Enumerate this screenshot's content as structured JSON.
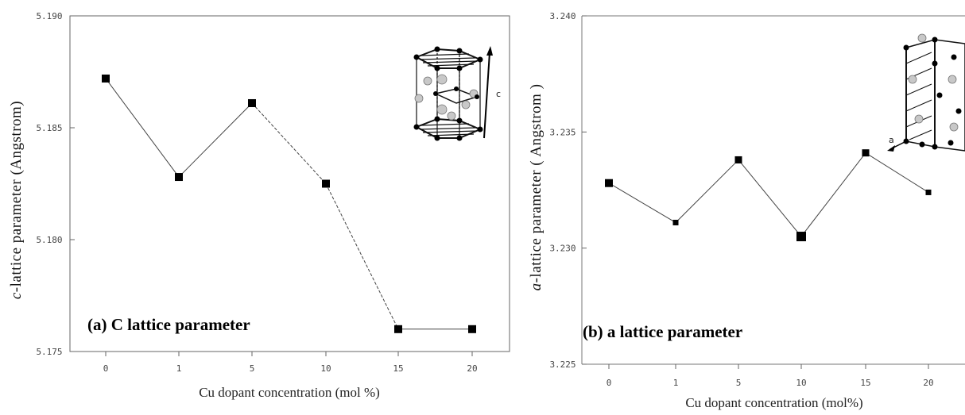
{
  "chart_data": [
    {
      "type": "line",
      "panel": "a",
      "annotation": "(a) C lattice parameter",
      "xlabel": "Cu dopant concentration (mol %)",
      "ylabel_italic": "c",
      "ylabel_rest": "-lattice parameter (Angstrom)",
      "categories": [
        "0",
        "1",
        "5",
        "10",
        "15",
        "20"
      ],
      "values": [
        5.1872,
        5.1828,
        5.1861,
        5.1825,
        5.176,
        5.176
      ],
      "ylim": [
        5.175,
        5.19
      ],
      "yticks": [
        "5.175",
        "5.180",
        "5.185",
        "5.190"
      ],
      "inset_label": "c"
    },
    {
      "type": "line",
      "panel": "b",
      "annotation": "(b) a lattice parameter",
      "xlabel": "Cu dopant concentration (mol%)",
      "ylabel_italic": "a",
      "ylabel_rest": "-lattice parameter ( Angstrom )",
      "categories": [
        "0",
        "1",
        "5",
        "10",
        "15",
        "20"
      ],
      "values": [
        3.2328,
        3.2311,
        3.2338,
        3.2305,
        3.2341,
        3.2324
      ],
      "ylim": [
        3.225,
        3.24
      ],
      "yticks": [
        "3.225",
        "3.230",
        "3.235",
        "3.240"
      ],
      "inset_label": "a"
    }
  ]
}
